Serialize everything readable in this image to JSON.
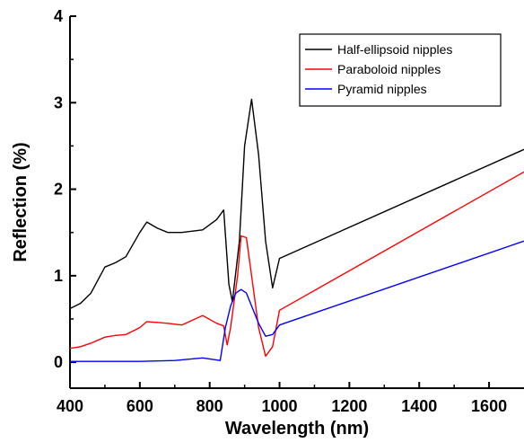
{
  "chart_data": {
    "type": "line",
    "title": "",
    "xlabel": "Wavelength (nm)",
    "ylabel": "Reflection (%)",
    "xlim": [
      400,
      1700
    ],
    "ylim": [
      -0.3,
      4
    ],
    "x_ticks": [
      400,
      600,
      800,
      1000,
      1200,
      1400,
      1600
    ],
    "y_ticks": [
      0,
      1,
      2,
      3,
      4
    ],
    "grid": false,
    "legend_position": "top-right",
    "series": [
      {
        "name": "Half-ellipsoid nipples",
        "color": "#000000",
        "points": [
          [
            400,
            0.62
          ],
          [
            430,
            0.68
          ],
          [
            460,
            0.8
          ],
          [
            500,
            1.1
          ],
          [
            530,
            1.15
          ],
          [
            560,
            1.22
          ],
          [
            600,
            1.5
          ],
          [
            620,
            1.62
          ],
          [
            650,
            1.55
          ],
          [
            680,
            1.5
          ],
          [
            720,
            1.5
          ],
          [
            780,
            1.53
          ],
          [
            820,
            1.65
          ],
          [
            840,
            1.76
          ],
          [
            855,
            0.9
          ],
          [
            865,
            0.7
          ],
          [
            885,
            1.4
          ],
          [
            900,
            2.5
          ],
          [
            920,
            3.04
          ],
          [
            940,
            2.4
          ],
          [
            960,
            1.4
          ],
          [
            980,
            0.86
          ],
          [
            1000,
            1.2
          ],
          [
            1700,
            2.46
          ]
        ]
      },
      {
        "name": "Paraboloid nipples",
        "color": "#ff0000",
        "points": [
          [
            400,
            0.16
          ],
          [
            430,
            0.18
          ],
          [
            460,
            0.22
          ],
          [
            500,
            0.29
          ],
          [
            530,
            0.31
          ],
          [
            560,
            0.32
          ],
          [
            600,
            0.4
          ],
          [
            620,
            0.47
          ],
          [
            650,
            0.46
          ],
          [
            680,
            0.45
          ],
          [
            720,
            0.43
          ],
          [
            780,
            0.54
          ],
          [
            820,
            0.45
          ],
          [
            840,
            0.42
          ],
          [
            850,
            0.2
          ],
          [
            860,
            0.4
          ],
          [
            880,
            1.0
          ],
          [
            890,
            1.46
          ],
          [
            905,
            1.44
          ],
          [
            920,
            1.0
          ],
          [
            940,
            0.4
          ],
          [
            960,
            0.07
          ],
          [
            980,
            0.18
          ],
          [
            1000,
            0.6
          ],
          [
            1700,
            2.2
          ]
        ]
      },
      {
        "name": "Pyramid nipples",
        "color": "#0000ff",
        "points": [
          [
            400,
            0.01
          ],
          [
            500,
            0.01
          ],
          [
            600,
            0.01
          ],
          [
            700,
            0.02
          ],
          [
            780,
            0.05
          ],
          [
            830,
            0.02
          ],
          [
            845,
            0.4
          ],
          [
            860,
            0.65
          ],
          [
            875,
            0.8
          ],
          [
            890,
            0.84
          ],
          [
            905,
            0.8
          ],
          [
            920,
            0.65
          ],
          [
            940,
            0.45
          ],
          [
            960,
            0.3
          ],
          [
            980,
            0.32
          ],
          [
            1000,
            0.43
          ],
          [
            1700,
            1.4
          ]
        ]
      }
    ]
  }
}
